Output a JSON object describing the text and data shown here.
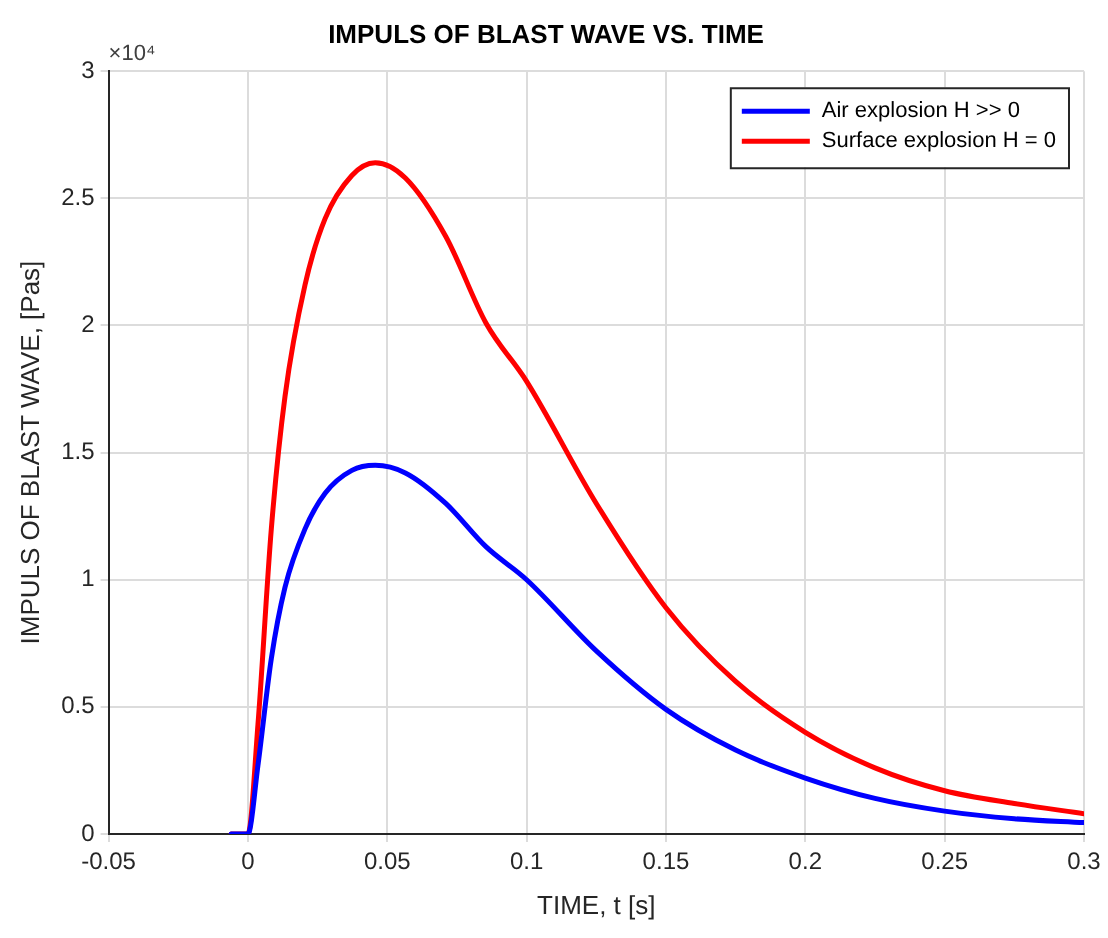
{
  "chart_data": {
    "type": "line",
    "title": "IMPULS OF BLAST WAVE VS. TIME",
    "xlabel": "TIME, t [s]",
    "ylabel": "IMPULS OF BLAST WAVE, [Pas]",
    "annotations": [
      "×10⁴"
    ],
    "xlim": [
      -0.05,
      0.3
    ],
    "xticks": [
      -0.05,
      0,
      0.05,
      0.1,
      0.15,
      0.2,
      0.25,
      0.3
    ],
    "ylim": [
      0,
      3
    ],
    "yticks": [
      0,
      0.5,
      1,
      1.5,
      2,
      2.5,
      3
    ],
    "grid": true,
    "legend": "top right",
    "marker": "none",
    "line_style": "solid",
    "x": [
      -0.006,
      0,
      0.0036,
      0.0084,
      0.0133,
      0.0205,
      0.0277,
      0.0373,
      0.0457,
      0.0565,
      0.071,
      0.0854,
      0.1,
      0.125,
      0.15,
      0.175,
      0.2,
      0.225,
      0.25,
      0.275,
      0.3
    ],
    "series": [
      {
        "name": "Air explosion H >> 0",
        "color": "#0000ff",
        "values": [
          0,
          0,
          0.27,
          0.69,
          0.97,
          1.2,
          1.34,
          1.43,
          1.45,
          1.42,
          1.3,
          1.13,
          1,
          0.72,
          0.49,
          0.33,
          0.22,
          0.14,
          0.09,
          0.06,
          0.045
        ]
      },
      {
        "name": "Surface explosion H = 0",
        "color": "#ff0000",
        "values": [
          0,
          0,
          0.43,
          1.2,
          1.72,
          2.16,
          2.42,
          2.59,
          2.64,
          2.58,
          2.35,
          2.01,
          1.78,
          1.3,
          0.89,
          0.6,
          0.4,
          0.26,
          0.17,
          0.12,
          0.08
        ]
      }
    ]
  }
}
